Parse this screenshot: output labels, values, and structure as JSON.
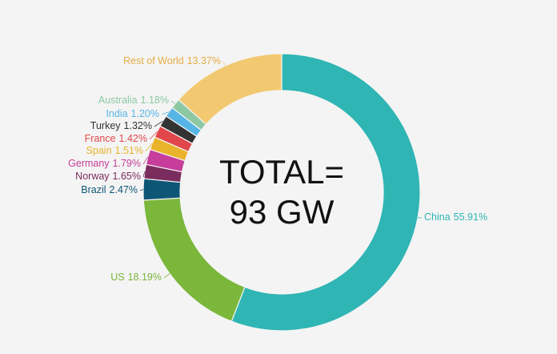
{
  "chart_data": {
    "type": "donut",
    "categories": [
      "China",
      "US",
      "Brazil",
      "Norway",
      "Germany",
      "Spain",
      "France",
      "Turkey",
      "India",
      "Australia",
      "Rest of World"
    ],
    "values": [
      55.91,
      18.19,
      2.47,
      1.65,
      1.79,
      1.51,
      1.42,
      1.32,
      1.2,
      1.18,
      13.37
    ],
    "value_labels": [
      "55.91%",
      "18.19%",
      "2.47%",
      "1.65%",
      "1.79%",
      "1.51%",
      "1.42%",
      "1.32%",
      "1.20%",
      "1.18%",
      "13.37%"
    ],
    "colors": [
      "#2fb5b4",
      "#7ab73b",
      "#0e5675",
      "#7a2c5e",
      "#c63d9b",
      "#e9b42b",
      "#e1474a",
      "#333333",
      "#57b5e6",
      "#8dc8a4",
      "#f2c971"
    ],
    "center_text": [
      "TOTAL=",
      "93 GW"
    ]
  }
}
